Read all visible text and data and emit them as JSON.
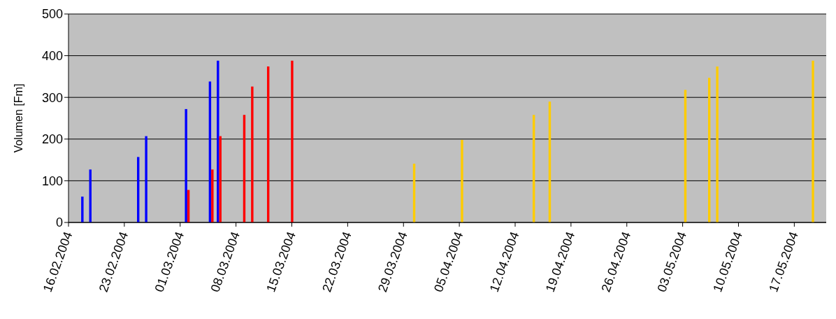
{
  "chart_data": {
    "type": "bar",
    "ylabel": "Volumen [Fm]",
    "ylim": [
      0,
      500
    ],
    "yticks": [
      0,
      100,
      200,
      300,
      400,
      500
    ],
    "grid": "y",
    "xlim": [
      "2004-02-16",
      "2004-05-21"
    ],
    "xticks": [
      {
        "value": "2004-02-16",
        "label": "16.02.2004"
      },
      {
        "value": "2004-02-23",
        "label": "23.02.2004"
      },
      {
        "value": "2004-03-01",
        "label": "01.03.2004"
      },
      {
        "value": "2004-03-08",
        "label": "08.03.2004"
      },
      {
        "value": "2004-03-15",
        "label": "15.03.2004"
      },
      {
        "value": "2004-03-22",
        "label": "22.03.2004"
      },
      {
        "value": "2004-03-29",
        "label": "29.03.2004"
      },
      {
        "value": "2004-04-05",
        "label": "05.04.2004"
      },
      {
        "value": "2004-04-12",
        "label": "12.04.2004"
      },
      {
        "value": "2004-04-19",
        "label": "19.04.2004"
      },
      {
        "value": "2004-04-26",
        "label": "26.04.2004"
      },
      {
        "value": "2004-05-03",
        "label": "03.05.2004"
      },
      {
        "value": "2004-05-10",
        "label": "10.05.2004"
      },
      {
        "value": "2004-05-17",
        "label": "17.05.2004"
      }
    ],
    "series": [
      {
        "color": "#0000ff",
        "x": [
          "2004-02-18",
          "2004-02-19",
          "2004-02-25",
          "2004-02-26",
          "2004-03-02",
          "2004-03-05",
          "2004-03-06"
        ],
        "values": [
          62,
          127,
          157,
          207,
          272,
          338,
          388
        ]
      },
      {
        "color": "#ff0000",
        "x": [
          "2004-03-02",
          "2004-03-05",
          "2004-03-06",
          "2004-03-09",
          "2004-03-10",
          "2004-03-12",
          "2004-03-15"
        ],
        "values": [
          78,
          127,
          207,
          258,
          326,
          374,
          388
        ]
      },
      {
        "color": "#ffcc00",
        "x": [
          "2004-03-30",
          "2004-04-05",
          "2004-04-14",
          "2004-04-16",
          "2004-05-03",
          "2004-05-06",
          "2004-05-07",
          "2004-05-19"
        ],
        "values": [
          141,
          198,
          258,
          290,
          318,
          347,
          374,
          388
        ]
      }
    ]
  }
}
